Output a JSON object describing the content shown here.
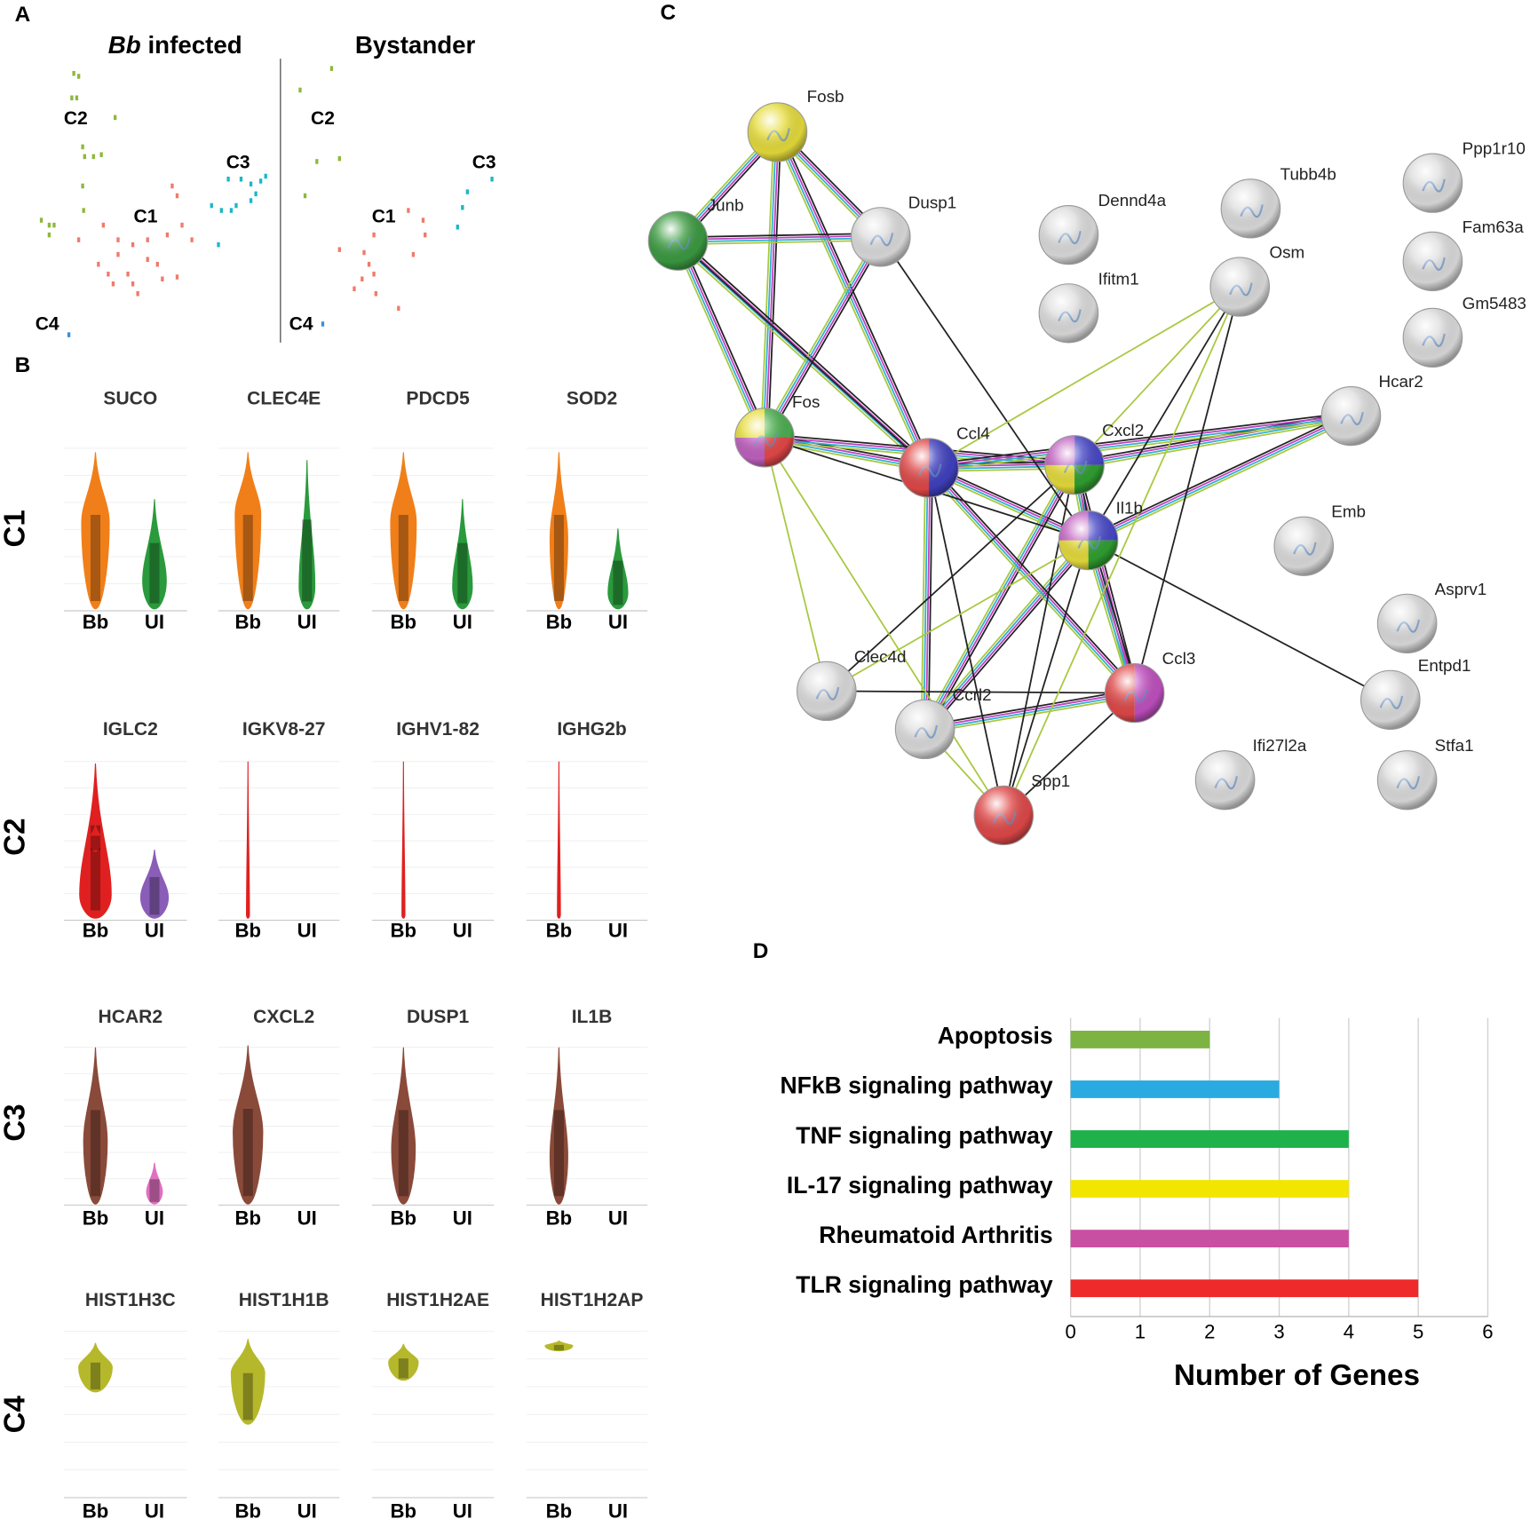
{
  "panel_labels": [
    "A",
    "B",
    "C",
    "D"
  ],
  "umap": {
    "infected_title": {
      "species": "Bb",
      "text": "infected"
    },
    "bystander_title": "Bystander",
    "clusters": [
      "C1",
      "C2",
      "C3",
      "C4"
    ]
  },
  "violins": {
    "rows": [
      "C1",
      "C2",
      "C3",
      "C4"
    ],
    "genes": [
      [
        "SUCO",
        "CLEC4E",
        "PDCD5",
        "SOD2"
      ],
      [
        "IGLC2",
        "IGKV8-27",
        "IGHV1-82",
        "IGHG2b"
      ],
      [
        "HCAR2",
        "CXCL2",
        "DUSP1",
        "IL1B"
      ],
      [
        "HIST1H3C",
        "HIST1H1B",
        "HIST1H2AE",
        "HIST1H2AP"
      ]
    ],
    "groups": [
      "Bb",
      "UI"
    ]
  },
  "network": {
    "nodes": [
      "Fosb",
      "Junb",
      "Dusp1",
      "Dennd4a",
      "Tubb4b",
      "Ppp1r10",
      "Fam63a",
      "Gm5483",
      "Ifitm1",
      "Osm",
      "Hcar2",
      "Fos",
      "Ccl4",
      "Cxcl2",
      "Il1b",
      "Emb",
      "Asprv1",
      "Entpd1",
      "Clec4d",
      "Ccrl2",
      "Ccl3",
      "Spp1",
      "Ifi27l2a",
      "Stfa1"
    ]
  },
  "chart_data": {
    "type": "bar",
    "orientation": "horizontal",
    "categories": [
      "Apoptosis",
      "NFkB signaling pathway",
      "TNF signaling pathway",
      "IL-17 signaling pathway",
      "Rheumatoid Arthritis",
      "TLR signaling pathway"
    ],
    "values": [
      2,
      3,
      4,
      4,
      4,
      5
    ],
    "colors": [
      "#7cb342",
      "#29abe2",
      "#1fb24a",
      "#f2e600",
      "#c94fa3",
      "#ee2a2a"
    ],
    "xlim": [
      0,
      6
    ],
    "xticks": [
      0,
      1,
      2,
      3,
      4,
      5,
      6
    ],
    "xlabel": "Number of Genes",
    "grid": true
  }
}
